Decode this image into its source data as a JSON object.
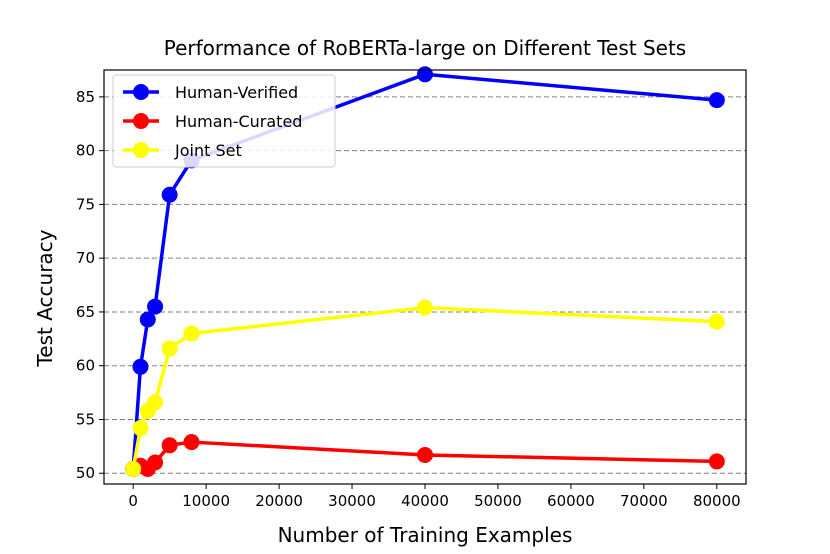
{
  "chart_data": {
    "type": "line",
    "title": "Performance of RoBERTa-large on Different Test Sets",
    "xlabel": "Number of Training Examples",
    "ylabel": "Test Accuracy",
    "xlim": [
      -4000,
      84000
    ],
    "ylim": [
      49,
      87.5
    ],
    "x_ticks": [
      0,
      10000,
      20000,
      30000,
      40000,
      50000,
      60000,
      70000,
      80000
    ],
    "y_ticks": [
      50,
      55,
      60,
      65,
      70,
      75,
      80,
      85
    ],
    "grid": "horizontal dashed",
    "legend_position": "top-left",
    "series": [
      {
        "name": "Human-Verified",
        "color": "#0000ff",
        "x": [
          0,
          1000,
          2000,
          3000,
          5000,
          8000,
          40000,
          80000
        ],
        "y": [
          50.4,
          59.9,
          64.3,
          65.5,
          75.9,
          79.1,
          87.1,
          84.7
        ]
      },
      {
        "name": "Human-Curated",
        "color": "#ff0000",
        "x": [
          0,
          1000,
          2000,
          3000,
          5000,
          8000,
          40000,
          80000
        ],
        "y": [
          50.4,
          50.7,
          50.4,
          51.0,
          52.6,
          52.9,
          51.7,
          51.1
        ]
      },
      {
        "name": "Joint Set",
        "color": "#ffff00",
        "x": [
          0,
          1000,
          2000,
          3000,
          5000,
          8000,
          40000,
          80000
        ],
        "y": [
          50.4,
          54.2,
          55.8,
          56.6,
          61.6,
          63.0,
          65.4,
          64.1
        ]
      }
    ]
  }
}
